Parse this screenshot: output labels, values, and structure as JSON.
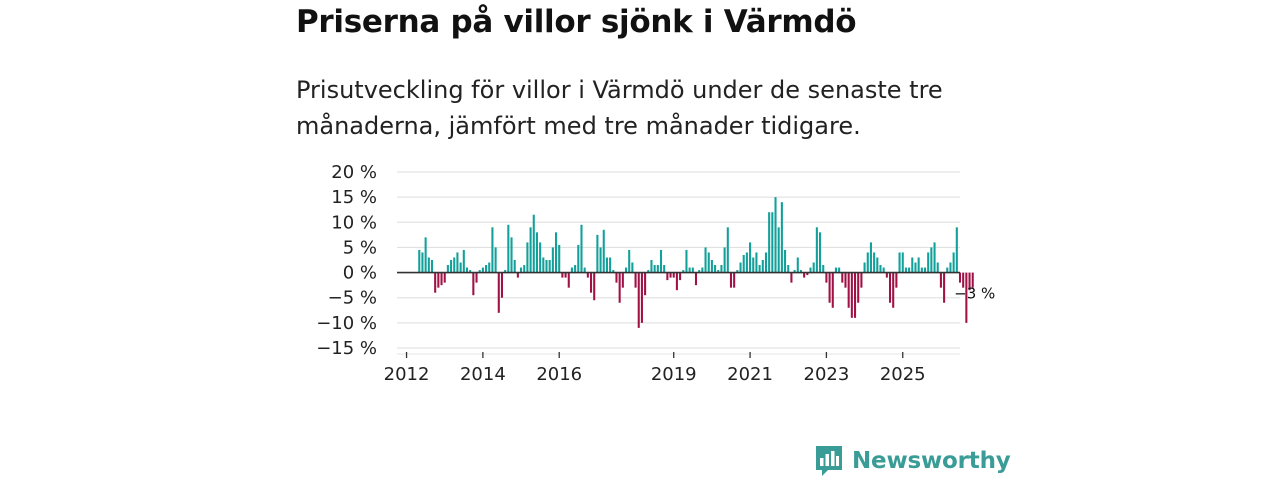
{
  "header": {
    "title": "Priserna på villor sjönk i Värmdö",
    "subtitle": "Prisutveckling för villor i Värmdö under de senaste tre månaderna, jämfört med tre månader tidigare."
  },
  "brand": {
    "name": "Newsworthy",
    "color": "#3a9c96"
  },
  "colors": {
    "positive": "#12a09a",
    "negative": "#a01246",
    "grid": "#dddddd",
    "zero": "#333333"
  },
  "chart_data": {
    "type": "bar",
    "title": "Priserna på villor sjönk i Värmdö",
    "ylabel": "",
    "xlabel": "",
    "ylim": [
      -15,
      20
    ],
    "y_ticks": [
      {
        "value": 20,
        "label": "20 %"
      },
      {
        "value": 15,
        "label": "15 %"
      },
      {
        "value": 10,
        "label": "10 %"
      },
      {
        "value": 5,
        "label": "5 %"
      },
      {
        "value": 0,
        "label": "0 %"
      },
      {
        "value": -5,
        "label": "−5 %"
      },
      {
        "value": -10,
        "label": "−10 %"
      },
      {
        "value": -15,
        "label": "−15 %"
      }
    ],
    "x_ticks": [
      {
        "year": 2012,
        "label": "2012"
      },
      {
        "year": 2014,
        "label": "2014"
      },
      {
        "year": 2016,
        "label": "2016"
      },
      {
        "year": 2019,
        "label": "2019"
      },
      {
        "year": 2021,
        "label": "2021"
      },
      {
        "year": 2023,
        "label": "2023"
      },
      {
        "year": 2025,
        "label": "2025"
      }
    ],
    "x_range": [
      2011.75,
      2026.5
    ],
    "start": {
      "year": 2012,
      "month": 5
    },
    "values": [
      4.5,
      4,
      7,
      3,
      2.5,
      -4,
      -3,
      -2.5,
      -2,
      1.5,
      2.5,
      3,
      4,
      2,
      4.5,
      1,
      0.5,
      -4.5,
      -2,
      0.5,
      1,
      1.5,
      2,
      9,
      5,
      -8,
      -5,
      0.5,
      9.5,
      7,
      2.5,
      -1,
      1,
      1.5,
      6,
      9,
      11.5,
      8,
      6,
      3,
      2.5,
      2.5,
      5,
      8,
      5.5,
      -1,
      -1,
      -3,
      1,
      1.5,
      5.5,
      9.5,
      1,
      -1,
      -4,
      -5.5,
      7.5,
      5,
      8.5,
      3,
      3,
      0.5,
      -2,
      -6,
      -3,
      1,
      4.5,
      2,
      -3,
      -11,
      -10,
      -4.5,
      0.5,
      2.5,
      1.5,
      1.5,
      4.5,
      1.5,
      -1.5,
      -1,
      -1,
      -3.5,
      -1.5,
      0.5,
      4.5,
      1,
      1,
      -2.5,
      0.5,
      1,
      5,
      4,
      2.5,
      1.5,
      0.5,
      1.5,
      5,
      9,
      -3,
      -3,
      0.5,
      2,
      3.5,
      4,
      6,
      3,
      4,
      1.5,
      2.5,
      4,
      12,
      12,
      15,
      9,
      14,
      4.5,
      1.5,
      -2,
      0.5,
      3,
      0.5,
      -1,
      -0.5,
      1,
      2,
      9,
      8,
      1.5,
      -2,
      -6,
      -7,
      1,
      1,
      -2,
      -3,
      -7,
      -9,
      -9,
      -6,
      -3,
      2,
      4,
      6,
      4,
      3,
      1.5,
      1,
      -1,
      -6,
      -7,
      -3,
      4,
      4,
      1,
      1,
      3,
      2,
      3,
      1,
      1,
      4,
      5,
      6,
      2,
      -3,
      -6,
      1,
      2,
      4,
      9,
      -2,
      -3,
      -10,
      -3.5,
      -3
    ],
    "annotations": [
      {
        "label": "−3 %",
        "value": -3
      }
    ]
  }
}
